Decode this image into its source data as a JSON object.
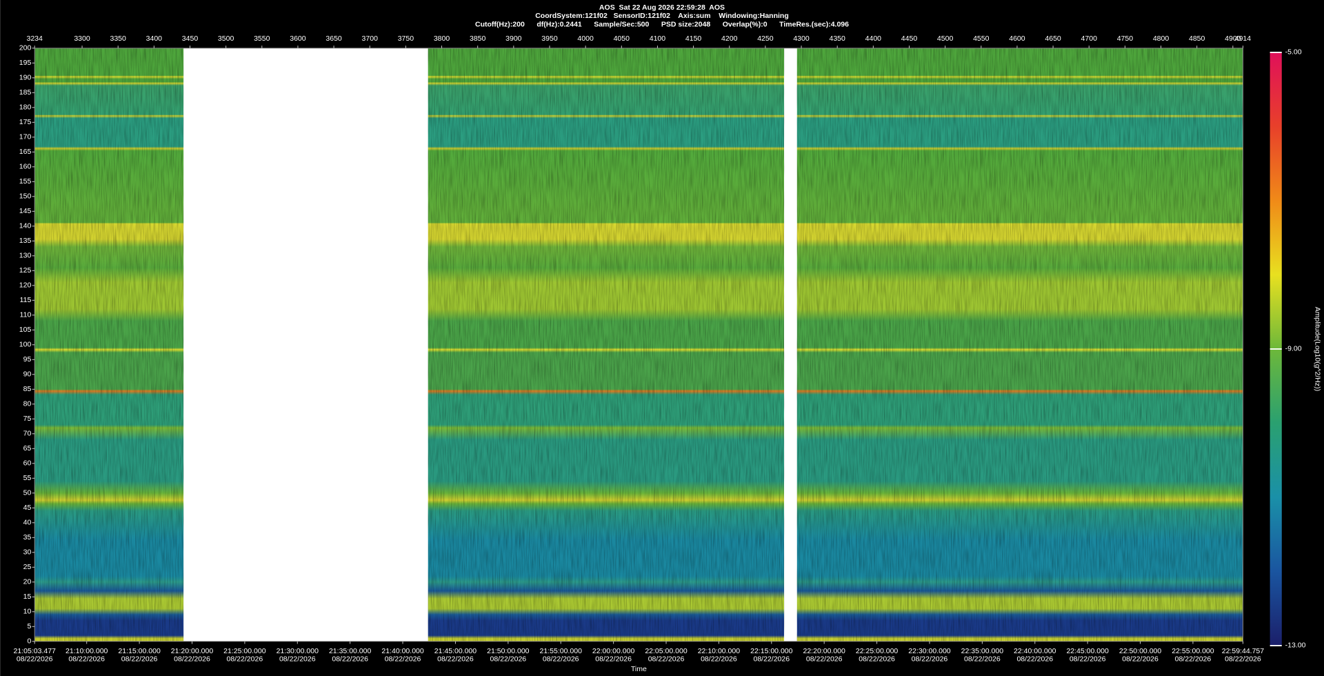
{
  "chart_data": {
    "type": "spectrogram",
    "title_lines": [
      "AOS  Sat 22 Aug 2026 22:59:28  AOS",
      "CoordSystem:121f02   SensorID:121f02    Axis:sum    Windowing:Hanning",
      "Cutoff(Hz):200      df(Hz):0.2441      Sample/Sec:500      PSD size:2048      Overlap(%):0      TimeRes.(sec):4.096"
    ],
    "xlim": [
      3234,
      4914
    ],
    "xticks": [
      3234,
      3300,
      3350,
      3400,
      3450,
      3500,
      3550,
      3600,
      3650,
      3700,
      3750,
      3800,
      3850,
      3900,
      3950,
      4000,
      4050,
      4100,
      4150,
      4200,
      4250,
      4300,
      4350,
      4400,
      4450,
      4500,
      4550,
      4600,
      4650,
      4700,
      4750,
      4800,
      4850,
      4900,
      4914
    ],
    "ylim": [
      0,
      200
    ],
    "yticks": [
      0,
      5,
      10,
      15,
      20,
      25,
      30,
      35,
      40,
      45,
      50,
      55,
      60,
      65,
      70,
      75,
      80,
      85,
      90,
      95,
      100,
      105,
      110,
      115,
      120,
      125,
      130,
      135,
      140,
      145,
      150,
      155,
      160,
      165,
      170,
      175,
      180,
      185,
      190,
      195,
      200
    ],
    "segments": [
      [
        3234,
        3441
      ],
      [
        3781,
        4276
      ],
      [
        4294,
        4914
      ]
    ],
    "time_axis": {
      "label": "Time",
      "start": "21:05:03.477",
      "end": "22:59:44.757",
      "date": "08/22/2026",
      "ticks": [
        "21:10:00.000",
        "21:15:00.000",
        "21:20:00.000",
        "21:25:00.000",
        "21:30:00.000",
        "21:35:00.000",
        "21:40:00.000",
        "21:45:00.000",
        "21:50:00.000",
        "21:55:00.000",
        "22:00:00.000",
        "22:05:00.000",
        "22:10:00.000",
        "22:15:00.000",
        "22:20:00.000",
        "22:25:00.000",
        "22:30:00.000",
        "22:35:00.000",
        "22:40:00.000",
        "22:45:00.000",
        "22:50:00.000",
        "22:55:00.000"
      ]
    },
    "colorbar": {
      "label": "Amplitude(Log10(g^2/Hz))",
      "lim": [
        -13,
        -5
      ],
      "ticks": [
        {
          "value": -13,
          "label": "-13.00"
        },
        {
          "value": -9,
          "label": "-9.00"
        },
        {
          "value": -5,
          "label": "-5.00"
        }
      ],
      "colors": [
        "#1b1f6a",
        "#1a55a0",
        "#1a90a8",
        "#2aa070",
        "#6db83a",
        "#e8e020",
        "#f08a18",
        "#e8402a",
        "#e0105a"
      ]
    }
  }
}
